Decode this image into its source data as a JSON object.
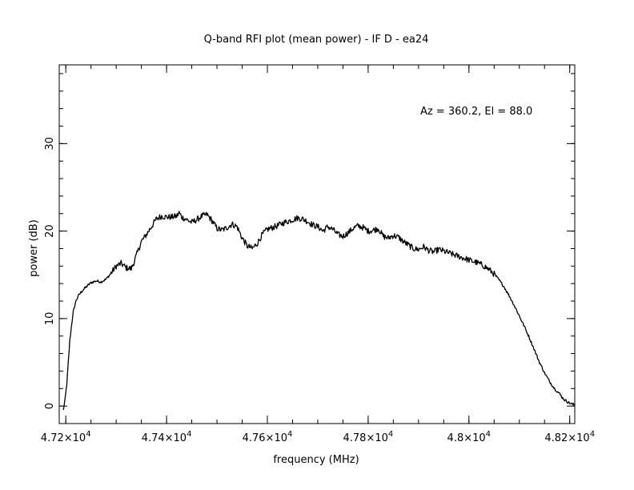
{
  "chart_data": {
    "type": "line",
    "title": "Q-band RFI plot (mean power) - IF D - ea24",
    "xlabel": "frequency (MHz)",
    "ylabel": "power (dB)",
    "annotation": "Az = 360.2, El = 88.0",
    "xlim": [
      47187,
      48210
    ],
    "ylim": [
      -2,
      39
    ],
    "x_ticks": [
      {
        "value": 47200,
        "label": "4.72×10^4",
        "mant": "4.72",
        "exp": "4"
      },
      {
        "value": 47400,
        "label": "4.74×10^4",
        "mant": "4.74",
        "exp": "4"
      },
      {
        "value": 47600,
        "label": "4.76×10^4",
        "mant": "4.76",
        "exp": "4"
      },
      {
        "value": 47800,
        "label": "4.78×10^4",
        "mant": "4.78",
        "exp": "4"
      },
      {
        "value": 48000,
        "label": "4.8×10^4",
        "mant": "4.8",
        "exp": "4"
      },
      {
        "value": 48200,
        "label": "4.82×10^4",
        "mant": "4.82",
        "exp": "4"
      }
    ],
    "y_ticks": [
      {
        "value": 0,
        "label": "0"
      },
      {
        "value": 10,
        "label": "10"
      },
      {
        "value": 20,
        "label": "20"
      },
      {
        "value": 30,
        "label": "30"
      }
    ],
    "x_minor_step": 50,
    "y_minor_step": 2,
    "grid": false,
    "line_color": "#000000",
    "series": [
      {
        "x": [
          47195,
          47198,
          47202,
          47205,
          47208,
          47212,
          47215,
          47220,
          47225,
          47230,
          47240,
          47250,
          47260,
          47270,
          47280,
          47290,
          47300,
          47310,
          47320,
          47330,
          47335,
          47340,
          47345,
          47350,
          47360,
          47370,
          47380,
          47390,
          47400,
          47410,
          47420,
          47425,
          47430,
          47440,
          47450,
          47460,
          47470,
          47480,
          47490,
          47500,
          47510,
          47520,
          47530,
          47540,
          47550,
          47560,
          47570,
          47580,
          47590,
          47600,
          47610,
          47620,
          47630,
          47640,
          47650,
          47660,
          47670,
          47680,
          47690,
          47695,
          47700,
          47705,
          47710,
          47720,
          47730,
          47740,
          47750,
          47760,
          47770,
          47780,
          47790,
          47800,
          47810,
          47820,
          47830,
          47840,
          47850,
          47860,
          47870,
          47880,
          47890,
          47900,
          47910,
          47920,
          47930,
          47940,
          47950,
          47960,
          47970,
          47980,
          47990,
          48000,
          48010,
          48020,
          48030,
          48040,
          48050,
          48060,
          48070,
          48080,
          48090,
          48100,
          48110,
          48120,
          48130,
          48140,
          48150,
          48160,
          48170,
          48180,
          48185,
          48190,
          48195,
          48198,
          48202,
          48206,
          48210
        ],
        "y": [
          -0.5,
          0.5,
          2.5,
          5.0,
          7.5,
          9.5,
          10.8,
          12.0,
          12.6,
          13.0,
          13.6,
          14.1,
          14.3,
          14.2,
          14.5,
          15.2,
          16.0,
          16.3,
          15.8,
          15.7,
          16.4,
          17.2,
          18.0,
          18.8,
          19.6,
          20.5,
          21.4,
          21.7,
          21.6,
          21.6,
          21.7,
          22.1,
          21.6,
          21.3,
          21.0,
          21.3,
          21.7,
          21.9,
          21.2,
          20.3,
          20.1,
          20.4,
          20.8,
          20.5,
          19.2,
          18.3,
          18.0,
          18.6,
          19.6,
          20.2,
          20.4,
          20.6,
          20.9,
          21.1,
          21.3,
          21.5,
          21.4,
          21.1,
          20.7,
          20.6,
          20.5,
          20.3,
          20.0,
          20.5,
          20.2,
          19.6,
          19.4,
          19.8,
          20.3,
          20.6,
          20.4,
          20.0,
          20.1,
          20.3,
          19.4,
          19.2,
          19.5,
          19.3,
          18.8,
          18.4,
          18.0,
          17.9,
          18.2,
          17.8,
          17.6,
          17.9,
          17.7,
          17.5,
          17.3,
          17.1,
          16.9,
          16.7,
          16.5,
          16.3,
          16.0,
          15.6,
          15.1,
          14.4,
          13.6,
          12.6,
          11.5,
          10.3,
          9.1,
          7.8,
          6.4,
          5.0,
          3.8,
          2.8,
          2.0,
          1.4,
          1.0,
          0.7,
          0.5,
          0.4,
          0.3,
          0.2,
          0.1
        ]
      }
    ]
  }
}
